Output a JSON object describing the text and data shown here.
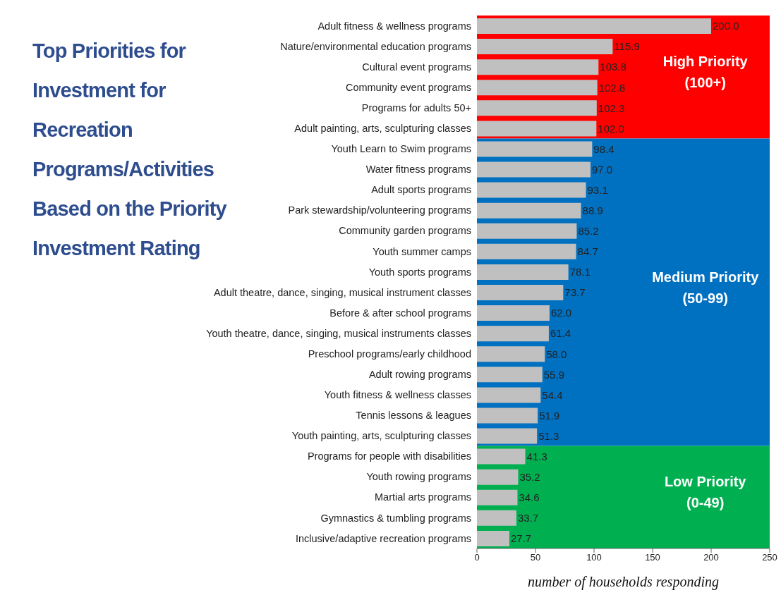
{
  "chart_data": {
    "type": "bar",
    "orientation": "horizontal",
    "title": "Top Priorities for Investment for Recreation Programs/Activities Based on the Priority Investment Rating",
    "xlabel": "number of households responding",
    "categories": [
      "Adult fitness & wellness programs",
      "Nature/environmental education programs",
      "Cultural event programs",
      "Community event programs",
      "Programs for adults 50+",
      "Adult painting, arts, sculpturing classes",
      "Youth Learn to Swim programs",
      "Water fitness programs",
      "Adult sports programs",
      "Park stewardship/volunteering programs",
      "Community garden programs",
      "Youth summer camps",
      "Youth sports programs",
      "Adult theatre, dance, singing, musical instrument classes",
      "Before & after school programs",
      "Youth theatre, dance, singing, musical instruments classes",
      "Preschool programs/early childhood",
      "Adult rowing programs",
      "Youth fitness & wellness classes",
      "Tennis lessons & leagues",
      "Youth painting, arts, sculpturing classes",
      "Programs for people with disabilities",
      "Youth rowing programs",
      "Martial arts programs",
      "Gymnastics & tumbling programs",
      "Inclusive/adaptive recreation programs"
    ],
    "values": [
      200.0,
      115.9,
      103.8,
      102.8,
      102.3,
      102.0,
      98.4,
      97.0,
      93.1,
      88.9,
      85.2,
      84.7,
      78.1,
      73.7,
      62.0,
      61.4,
      58.0,
      55.9,
      54.4,
      51.9,
      51.3,
      41.3,
      35.2,
      34.6,
      33.7,
      27.7
    ],
    "value_labels": [
      "200.0",
      "115.9",
      "103.8",
      "102.8",
      "102.3",
      "102.0",
      "98.4",
      "97.0",
      "93.1",
      "88.9",
      "85.2",
      "84.7",
      "78.1",
      "73.7",
      "62.0",
      "61.4",
      "58.0",
      "55.9",
      "54.4",
      "51.9",
      "51.3",
      "41.3",
      "35.2",
      "34.6",
      "33.7",
      "27.7"
    ],
    "color": "#c0c0c0",
    "xlim": [
      0,
      250
    ],
    "xticks": [
      0,
      50,
      100,
      150,
      200,
      250
    ],
    "grid": false,
    "legend": false,
    "bands": [
      {
        "axis": "y",
        "from": "Adult fitness & wellness programs",
        "to": "Adult painting, arts, sculpturing classes",
        "label": "High Priority\n(100+)",
        "color": "#ff0000"
      },
      {
        "axis": "y",
        "from": "Youth Learn to Swim programs",
        "to": "Youth painting, arts, sculpturing classes",
        "label": "Medium Priority\n(50-99)",
        "color": "#0070c0"
      },
      {
        "axis": "y",
        "from": "Programs for people with disabilities",
        "to": "Inclusive/adaptive recreation programs",
        "label": "Low Priority\n(0-49)",
        "color": "#00b050"
      }
    ]
  }
}
